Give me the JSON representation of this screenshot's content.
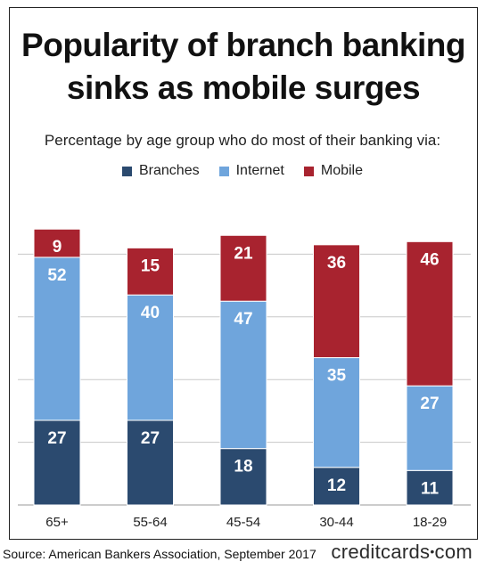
{
  "title_line1": "Popularity of branch banking",
  "title_line2": "sinks as mobile surges",
  "subtitle": "Percentage by age group who do most of their banking via:",
  "footer": {
    "source": "Source: American Bankers Association, September 2017",
    "brand_left": "creditcards",
    "brand_sep": "•",
    "brand_right": "com"
  },
  "colors": {
    "branches": "#2b4a6f",
    "internet": "#6fa5dc",
    "mobile": "#a8232f",
    "grid": "#c8c8c8"
  },
  "chart_data": {
    "type": "bar",
    "stacked": true,
    "title": "Popularity of branch banking sinks as mobile surges",
    "subtitle": "Percentage by age group who do most of their banking via:",
    "categories": [
      "65+",
      "55-64",
      "45-54",
      "30-44",
      "18-29"
    ],
    "series": [
      {
        "name": "Branches",
        "values": [
          27,
          27,
          18,
          12,
          11
        ]
      },
      {
        "name": "Internet",
        "values": [
          52,
          40,
          47,
          35,
          27
        ]
      },
      {
        "name": "Mobile",
        "values": [
          9,
          15,
          21,
          36,
          46
        ]
      }
    ],
    "ylim": [
      0,
      100
    ],
    "grid": true,
    "legend": "top-center",
    "data_labels": true
  }
}
